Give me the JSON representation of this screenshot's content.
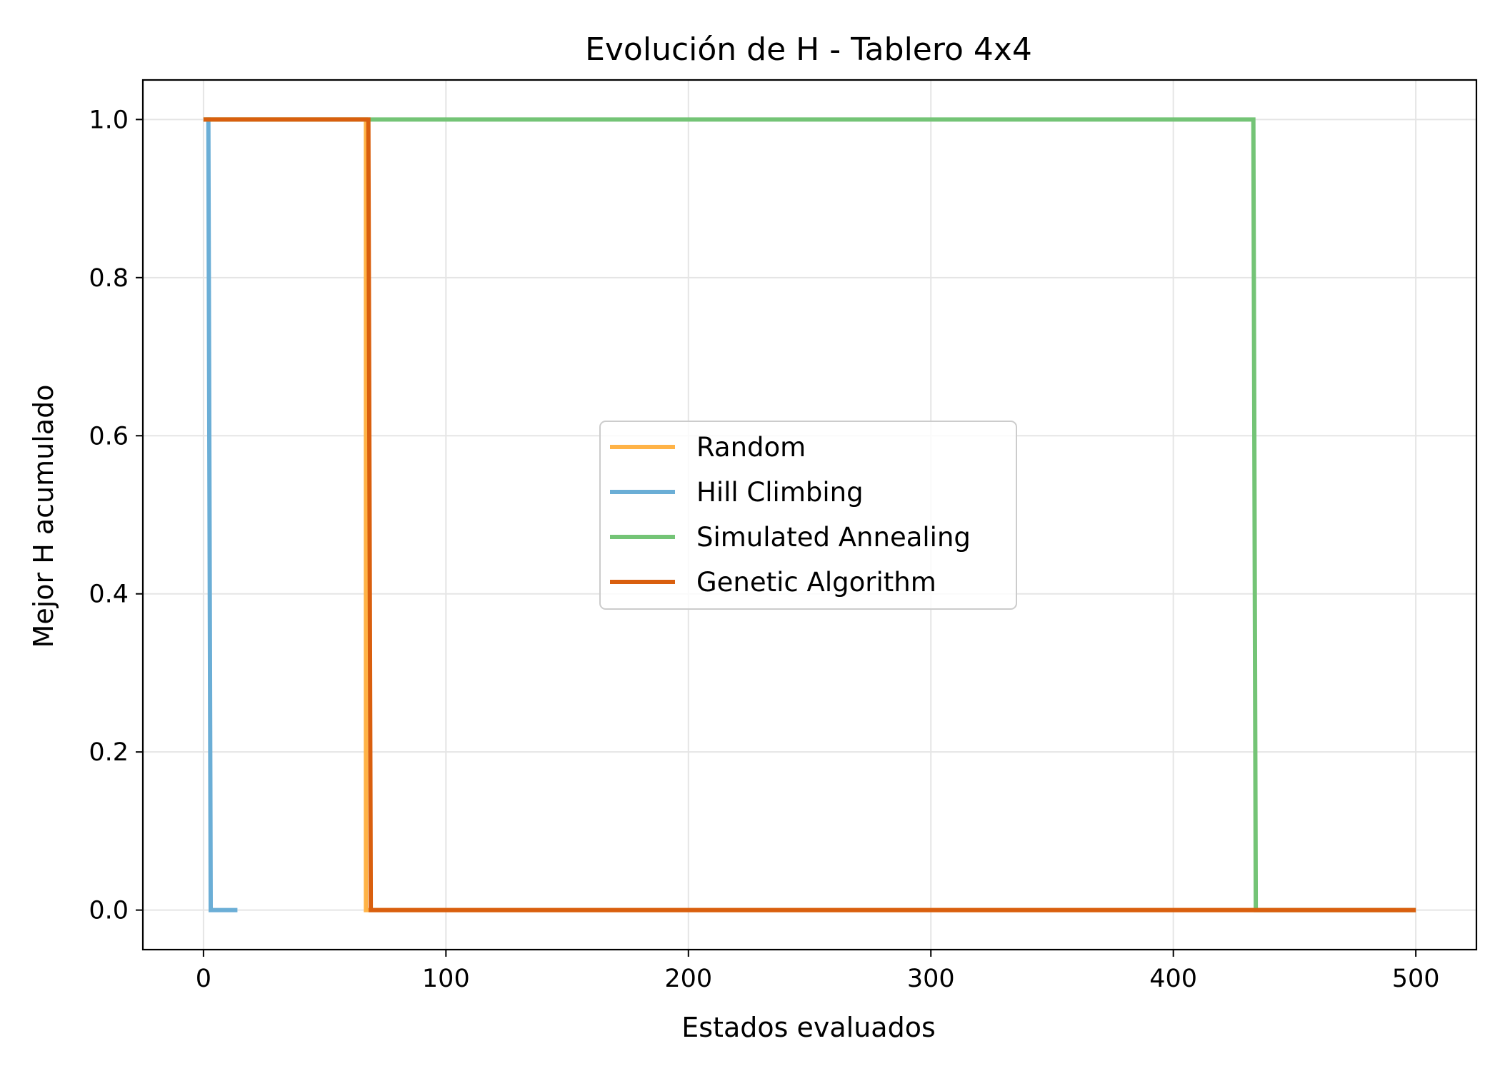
{
  "chart_data": {
    "type": "line",
    "title": "Evolución de H - Tablero 4x4",
    "xlabel": "Estados evaluados",
    "ylabel": "Mejor H acumulado",
    "xlim": [
      -25,
      525
    ],
    "ylim": [
      -0.05,
      1.05
    ],
    "xticks": [
      0,
      100,
      200,
      300,
      400,
      500
    ],
    "yticks": [
      0.0,
      0.2,
      0.4,
      0.6,
      0.8,
      1.0
    ],
    "xtick_labels": [
      "0",
      "100",
      "200",
      "300",
      "400",
      "500"
    ],
    "ytick_labels": [
      "0.0",
      "0.2",
      "0.4",
      "0.6",
      "0.8",
      "1.0"
    ],
    "grid": true,
    "legend_position": "center",
    "series": [
      {
        "name": "Random",
        "color": "#ffb347",
        "x": [
          0,
          67,
          67,
          500
        ],
        "y": [
          1.0,
          1.0,
          0.0,
          0.0
        ]
      },
      {
        "name": "Hill Climbing",
        "color": "#6baed6",
        "x": [
          1,
          2,
          3,
          14
        ],
        "y": [
          1.0,
          1.0,
          0.0,
          0.0
        ]
      },
      {
        "name": "Simulated Annealing",
        "color": "#74c476",
        "x": [
          0,
          433,
          434,
          500
        ],
        "y": [
          1.0,
          1.0,
          0.0,
          0.0
        ]
      },
      {
        "name": "Genetic Algorithm",
        "color": "#d95f0e",
        "x": [
          0,
          68,
          69,
          500
        ],
        "y": [
          1.0,
          1.0,
          0.0,
          0.0
        ]
      }
    ]
  }
}
